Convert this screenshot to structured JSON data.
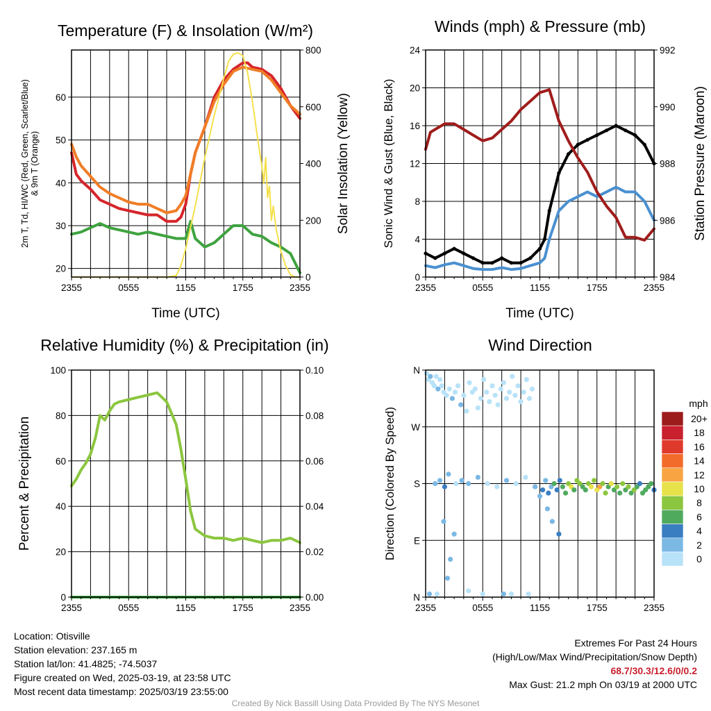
{
  "chart_data": [
    {
      "type": "line",
      "title": "Temperature (F) & Insolation (W/m²)",
      "xlabel": "Time (UTC)",
      "ylabel": "2m T, Td, HI/WC (Red, Green, Scarlet/Blue) & 9m T (Orange)",
      "ylabel_line1": "2m T, Td, HI/WC (Red, Green, Scarlet/Blue)",
      "ylabel_line2": "& 9m T (Orange)",
      "y2label": "Solar Insolation (Yellow)",
      "x_ticks": [
        "2355",
        "0555",
        "1155",
        "1755",
        "2355"
      ],
      "y_ticks": [
        "20",
        "30",
        "40",
        "50",
        "60"
      ],
      "y2_ticks": [
        "0",
        "200",
        "400",
        "600",
        "800"
      ],
      "xlim": [
        0,
        24
      ],
      "ylim": [
        18,
        71
      ],
      "y2lim": [
        0,
        800
      ],
      "grid": true,
      "series": [
        {
          "color": "#d6252b",
          "axis": "left",
          "x": [
            0,
            0.5,
            1,
            2,
            3,
            4,
            5,
            6,
            7,
            8,
            9,
            10,
            11,
            11.5,
            12,
            12.5,
            13,
            14,
            15,
            16,
            17,
            18,
            18.5,
            19,
            20,
            21,
            22,
            23,
            24
          ],
          "y": [
            47,
            42,
            40.5,
            38.5,
            36,
            35,
            34,
            33.5,
            33,
            32.5,
            32.5,
            31,
            31,
            32,
            35,
            42,
            47,
            53,
            60,
            64,
            66.5,
            68,
            68,
            67,
            66.5,
            65,
            62,
            58,
            55
          ]
        },
        {
          "color": "#f07d26",
          "axis": "left",
          "x": [
            0,
            0.5,
            1,
            2,
            3,
            4,
            5,
            6,
            7,
            8,
            9,
            10,
            11,
            11.5,
            12,
            12.5,
            13,
            14,
            15,
            16,
            17,
            18,
            19,
            20,
            21,
            22,
            23,
            24
          ],
          "y": [
            49,
            46,
            44,
            41.5,
            39,
            37.5,
            36.5,
            35.5,
            35,
            35,
            34,
            33,
            33.5,
            35,
            37,
            42,
            47,
            53,
            59,
            63,
            66,
            67,
            66.5,
            66,
            64,
            61,
            58,
            56
          ]
        },
        {
          "color": "#3fa33f",
          "axis": "left",
          "x": [
            0,
            1,
            2,
            3,
            4,
            5,
            6,
            7,
            8,
            9,
            10,
            11,
            12,
            12.5,
            13,
            14,
            15,
            16,
            17,
            18,
            19,
            20,
            21,
            22,
            23,
            24
          ],
          "y": [
            28,
            28.5,
            29.5,
            30.5,
            29.5,
            29,
            28.5,
            28,
            28.5,
            28,
            27.5,
            27,
            27,
            31,
            27,
            25,
            26,
            28,
            30,
            30,
            28,
            27.5,
            26,
            25,
            23.5,
            19
          ]
        },
        {
          "color": "#f5e04b",
          "axis": "right",
          "x": [
            0,
            10,
            11,
            11.5,
            12,
            13,
            14,
            15,
            16,
            16.5,
            17,
            17.5,
            18,
            18.5,
            19,
            19.5,
            20,
            20.2,
            20.4,
            20.6,
            20.8,
            21,
            21.2,
            21.5,
            22,
            22.5,
            23,
            23.5,
            24
          ],
          "y": [
            0,
            0,
            5,
            40,
            100,
            250,
            420,
            570,
            700,
            760,
            785,
            790,
            780,
            720,
            620,
            500,
            390,
            330,
            420,
            280,
            320,
            200,
            250,
            170,
            90,
            40,
            8,
            0,
            0
          ]
        }
      ]
    },
    {
      "type": "line",
      "title": "Winds (mph) & Pressure (mb)",
      "xlabel": "Time (UTC)",
      "ylabel": "Sonic Wind & Gust (Blue, Black)",
      "y2label": "Station Pressure (Maroon)",
      "x_ticks": [
        "2355",
        "0555",
        "1155",
        "1755",
        "2355"
      ],
      "y_ticks": [
        "0",
        "4",
        "8",
        "12",
        "16",
        "20",
        "24"
      ],
      "y2_ticks": [
        "984",
        "986",
        "988",
        "990",
        "992"
      ],
      "xlim": [
        0,
        24
      ],
      "ylim": [
        0,
        24
      ],
      "y2lim": [
        984,
        992
      ],
      "grid": true,
      "series": [
        {
          "color": "#4a90d0",
          "axis": "left",
          "x": [
            0,
            1,
            2,
            3,
            4,
            5,
            6,
            7,
            8,
            9,
            10,
            11,
            12,
            12.5,
            13,
            14,
            15,
            16,
            17,
            18,
            19,
            20,
            21,
            22,
            23,
            24
          ],
          "y": [
            1.2,
            1,
            1.3,
            1.5,
            1.2,
            0.9,
            0.8,
            0.8,
            1,
            0.8,
            0.9,
            1.2,
            1.5,
            2,
            4,
            7,
            8,
            8.5,
            9,
            8.5,
            9,
            9.5,
            9,
            9,
            8,
            6
          ]
        },
        {
          "color": "#000000",
          "axis": "left",
          "x": [
            0,
            1,
            2,
            3,
            4,
            5,
            6,
            7,
            8,
            9,
            10,
            11,
            12,
            12.5,
            13,
            14,
            15,
            16,
            17,
            18,
            19,
            20,
            21,
            22,
            23,
            24
          ],
          "y": [
            2.5,
            2,
            2.5,
            3,
            2.5,
            2,
            1.5,
            1.5,
            2,
            1.5,
            1.5,
            2,
            3,
            4,
            7,
            11,
            13,
            14,
            14.5,
            15,
            15.5,
            16,
            15.5,
            15,
            14,
            12
          ]
        },
        {
          "color": "#a01c1c",
          "axis": "right",
          "x": [
            0,
            0.5,
            1,
            2,
            3,
            4,
            5,
            6,
            7,
            8,
            9,
            10,
            11,
            12,
            13,
            14,
            15,
            16,
            17,
            18,
            19,
            20,
            21,
            22,
            23,
            24
          ],
          "y": [
            988.5,
            989.1,
            989.2,
            989.4,
            989.4,
            989.2,
            989.0,
            988.8,
            988.9,
            989.2,
            989.5,
            989.9,
            990.2,
            990.5,
            990.6,
            989.5,
            988.8,
            988.2,
            987.7,
            987.0,
            986.5,
            986.1,
            985.4,
            985.4,
            985.3,
            985.7
          ]
        }
      ]
    },
    {
      "type": "line",
      "title": "Relative Humidity (%) & Precipitation (in)",
      "xlabel": "",
      "ylabel": "Percent & Precipitation",
      "x_ticks": [
        "2355",
        "0555",
        "1155",
        "1755",
        "2355"
      ],
      "y_ticks": [
        "0",
        "20",
        "40",
        "60",
        "80",
        "100"
      ],
      "y2_ticks": [
        "0.00",
        "0.02",
        "0.04",
        "0.06",
        "0.08",
        "0.10"
      ],
      "xlim": [
        0,
        24
      ],
      "ylim": [
        0,
        100
      ],
      "y2lim": [
        0,
        0.1
      ],
      "grid": true,
      "series": [
        {
          "color": "#8cc63f",
          "axis": "left",
          "x": [
            0,
            0.5,
            1,
            1.5,
            2,
            2.5,
            3,
            3.5,
            4,
            4.5,
            5,
            6,
            7,
            8,
            9,
            10,
            11,
            11.5,
            12,
            12.5,
            13,
            14,
            15,
            16,
            17,
            18,
            19,
            20,
            21,
            22,
            23,
            24
          ],
          "y": [
            49,
            52,
            56,
            59,
            63,
            70,
            80,
            78,
            82,
            85,
            86,
            87,
            88,
            89,
            90,
            86,
            76,
            65,
            52,
            38,
            30,
            27,
            26,
            26,
            25,
            26,
            25,
            24,
            25,
            25,
            26,
            24
          ]
        },
        {
          "color": "#3fa33f",
          "axis": "right",
          "x": [
            0,
            24
          ],
          "y": [
            0,
            0
          ]
        }
      ]
    },
    {
      "type": "scatter",
      "title": "Wind Direction",
      "xlabel": "",
      "ylabel": "Direction (Colored By Speed)",
      "x_ticks": [
        "2355",
        "0555",
        "1155",
        "1755",
        "2355"
      ],
      "y_ticks": [
        "N",
        "E",
        "S",
        "W",
        "N"
      ],
      "xlim": [
        0,
        24
      ],
      "ylim": [
        0,
        360
      ],
      "grid": true,
      "legend": {
        "title": "mph",
        "labels": [
          "20+",
          "18",
          "16",
          "14",
          "12",
          "10",
          "8",
          "6",
          "4",
          "2",
          "0"
        ],
        "colors": [
          "#9c1b1b",
          "#c8202e",
          "#e03a2d",
          "#f26b2b",
          "#f8a443",
          "#e7e24a",
          "#8cc63f",
          "#4faa5e",
          "#3a7ec2",
          "#7bb8e4",
          "#b8e2f8"
        ],
        "placement": "right"
      },
      "x": [
        0.1,
        0.3,
        0.5,
        0.7,
        0.9,
        1.1,
        1.3,
        1.5,
        1.7,
        1.9,
        2.2,
        2.5,
        2.8,
        3.1,
        3.4,
        3.7,
        4.0,
        4.3,
        4.6,
        4.9,
        5.2,
        5.5,
        5.8,
        6.1,
        6.4,
        6.7,
        7.0,
        7.3,
        7.6,
        7.9,
        8.2,
        8.5,
        8.8,
        9.1,
        9.4,
        9.7,
        10.0,
        10.3,
        10.6,
        10.9,
        11.2,
        1.0,
        1.5,
        2.0,
        2.4,
        3.2,
        3.8,
        4.5,
        5.5,
        6.5,
        7.5,
        8.5,
        9.5,
        10.5,
        11.5,
        12.0,
        12.3,
        12.6,
        12.9,
        13.2,
        13.5,
        13.8,
        14.1,
        14.4,
        14.7,
        15.0,
        15.3,
        15.6,
        15.9,
        16.2,
        16.5,
        16.8,
        17.1,
        17.4,
        17.7,
        18.0,
        18.3,
        18.6,
        18.9,
        19.2,
        19.5,
        19.8,
        20.1,
        20.4,
        20.7,
        21.0,
        21.3,
        21.6,
        21.9,
        22.2,
        22.5,
        22.8,
        23.1,
        23.4,
        23.7,
        24.0,
        1.9,
        2.3,
        2.6,
        3.0,
        12.8,
        13.3,
        14.0,
        0.4,
        1.2,
        4.5,
        6.0,
        8.2,
        9.0,
        10.8
      ],
      "y": [
        355,
        345,
        350,
        340,
        335,
        350,
        330,
        345,
        335,
        325,
        320,
        330,
        315,
        325,
        335,
        305,
        320,
        295,
        340,
        325,
        330,
        300,
        315,
        345,
        325,
        310,
        335,
        320,
        305,
        330,
        340,
        315,
        325,
        350,
        320,
        335,
        310,
        325,
        345,
        315,
        330,
        180,
        185,
        175,
        195,
        180,
        185,
        180,
        190,
        180,
        175,
        185,
        180,
        190,
        175,
        160,
        170,
        185,
        165,
        175,
        180,
        170,
        185,
        175,
        165,
        180,
        175,
        170,
        185,
        180,
        175,
        170,
        180,
        175,
        185,
        170,
        175,
        180,
        165,
        175,
        180,
        170,
        175,
        165,
        180,
        170,
        175,
        165,
        170,
        175,
        180,
        165,
        170,
        175,
        180,
        170,
        120,
        30,
        60,
        100,
        140,
        120,
        100,
        5,
        5,
        10,
        5,
        5,
        5,
        5
      ],
      "speeds": [
        1,
        1,
        3,
        1,
        1,
        1,
        2,
        1,
        1,
        1,
        1,
        1,
        2,
        1,
        1,
        2,
        1,
        1,
        1,
        1,
        1,
        1,
        1,
        1,
        1,
        1,
        1,
        1,
        1,
        1,
        1,
        1,
        1,
        1,
        1,
        1,
        1,
        1,
        1,
        1,
        1,
        3,
        2,
        4,
        2,
        1,
        3,
        2,
        3,
        1,
        1,
        2,
        1,
        1,
        3,
        2,
        4,
        3,
        4,
        3,
        6,
        5,
        4,
        7,
        6,
        8,
        10,
        7,
        8,
        9,
        6,
        7,
        8,
        10,
        9,
        11,
        12,
        8,
        9,
        7,
        10,
        6,
        8,
        7,
        9,
        6,
        8,
        7,
        8,
        6,
        5,
        7,
        6,
        7,
        6,
        5,
        3,
        3,
        2,
        2,
        3,
        2,
        4,
        3,
        1,
        1,
        1,
        2,
        1,
        1
      ]
    }
  ],
  "station": {
    "location": "Location: Otisville",
    "elevation": "Station elevation: 237.165 m",
    "latlon": "Station lat/lon: 41.4825; -74.5037",
    "created": "Figure created on Wed, 2025-03-19, at 23:58 UTC",
    "recent": "Most recent data timestamp: 2025/03/19 23:55:00"
  },
  "extremes": {
    "title": "Extremes For Past 24 Hours",
    "legend": "(High/Low/Max Wind/Precipitation/Snow Depth)",
    "values": "68.7/30.3/12.6/0/0.2",
    "gust": "Max Gust: 21.2 mph On 03/19 at 2000 UTC"
  },
  "credit": "Created By Nick Bassill Using Data Provided By The NYS Mesonet"
}
